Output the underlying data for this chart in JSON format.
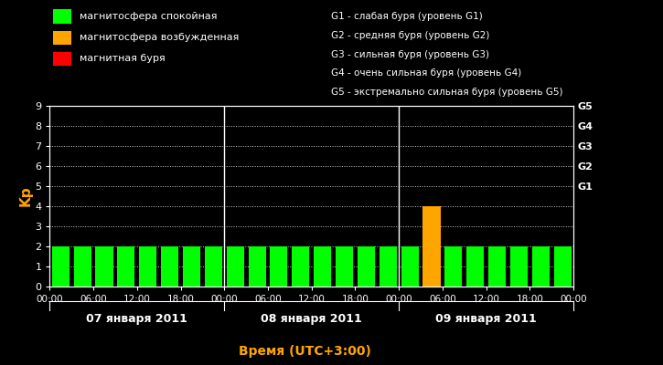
{
  "background_color": "#000000",
  "plot_bg_color": "#000000",
  "ylabel_color": "#FFA500",
  "xlabel": "Время (UTC+3:00)",
  "xlabel_color": "#FFA500",
  "ylim": [
    0,
    9
  ],
  "yticks": [
    0,
    1,
    2,
    3,
    4,
    5,
    6,
    7,
    8,
    9
  ],
  "days": [
    {
      "label": "07 января 2011"
    },
    {
      "label": "08 января 2011"
    },
    {
      "label": "09 января 2011"
    }
  ],
  "kp_values": [
    2,
    2,
    2,
    2,
    2,
    2,
    2,
    2,
    2,
    2,
    2,
    2,
    2,
    2,
    2,
    2,
    2,
    4,
    2,
    2,
    2,
    2,
    2,
    2
  ],
  "colors_green": "#00FF00",
  "colors_orange": "#FFA500",
  "colors_red": "#FF0000",
  "legend_items": [
    {
      "label": "магнитосфера спокойная",
      "color": "#00FF00"
    },
    {
      "label": "магнитосфера возбужденная",
      "color": "#FFA500"
    },
    {
      "label": "магнитная буря",
      "color": "#FF0000"
    }
  ],
  "g_labels": [
    "G1 - слабая буря (уровень G1)",
    "G2 - средняя буря (уровень G2)",
    "G3 - сильная буря (уровень G3)",
    "G4 - очень сильная буря (уровень G4)",
    "G5 - экстремально сильная буря (уровень G5)"
  ],
  "right_axis_labels": [
    "G1",
    "G2",
    "G3",
    "G4",
    "G5"
  ],
  "right_axis_positions": [
    5,
    6,
    7,
    8,
    9
  ],
  "white": "#ffffff",
  "n_bars": 24,
  "n_per_day": 8
}
